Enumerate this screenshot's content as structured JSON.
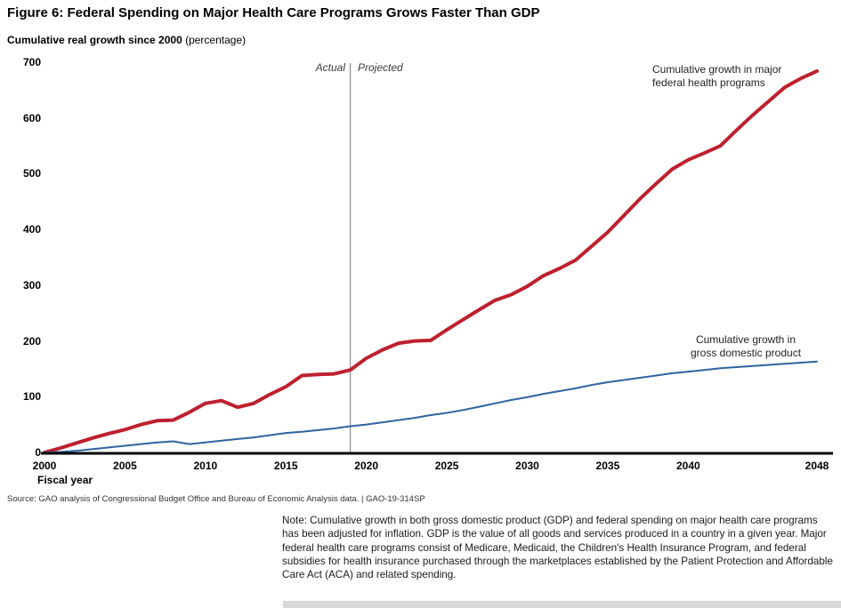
{
  "figure": {
    "title": "Figure 6: Federal Spending on Major Health Care Programs Grows Faster Than GDP",
    "y_axis_title_bold": "Cumulative real growth since 2000",
    "y_axis_title_unit": " (percentage)",
    "x_axis_title": "Fiscal year",
    "actual_label": "Actual",
    "projected_label": "Projected",
    "source": "Source: GAO analysis of Congressional Budget Office and Bureau of Economic Analysis data. | GAO-19-314SP",
    "note": "Note: Cumulative growth in both gross domestic product (GDP) and federal spending on major health care programs has been adjusted for inflation. GDP is the value of all goods and services produced in a country in a given year. Major federal health care programs consist of Medicare, Medicaid, the Children's Health Insurance Program, and federal subsidies for health insurance purchased through the marketplaces established by the Patient Protection and Affordable Care Act (ACA) and related spending."
  },
  "colors": {
    "health_line": "#be202e",
    "gdp_line": "#2e64a0",
    "axis": "#000000",
    "divider": "#8a8a8a"
  },
  "chart_data": {
    "type": "line",
    "title": "Figure 6: Federal Spending on Major Health Care Programs Grows Faster Than GDP",
    "ylabel": "Cumulative real growth since 2000 (percentage)",
    "xlabel": "Fiscal year",
    "xlim": [
      2000,
      2048
    ],
    "ylim": [
      0,
      700
    ],
    "y_ticks": [
      700,
      600,
      500,
      400,
      300,
      200,
      100,
      0
    ],
    "x_ticks": [
      2000,
      2005,
      2010,
      2015,
      2020,
      2025,
      2030,
      2035,
      2040,
      2048
    ],
    "grid": false,
    "legend": "inline-annotations",
    "actual_projected_divider_year": 2019,
    "x": [
      2000,
      2001,
      2002,
      2003,
      2004,
      2005,
      2006,
      2007,
      2008,
      2009,
      2010,
      2011,
      2012,
      2013,
      2014,
      2015,
      2016,
      2017,
      2018,
      2019,
      2020,
      2021,
      2022,
      2023,
      2024,
      2025,
      2026,
      2027,
      2028,
      2029,
      2030,
      2031,
      2032,
      2033,
      2034,
      2035,
      2036,
      2037,
      2038,
      2039,
      2040,
      2041,
      2042,
      2043,
      2044,
      2045,
      2046,
      2047,
      2048
    ],
    "series": [
      {
        "name": "Cumulative growth in major federal health programs",
        "label": "Cumulative growth in major\nfederal health programs",
        "color": "#be202e",
        "stroke_width": 4,
        "values": [
          0,
          8,
          17,
          26,
          34,
          41,
          50,
          57,
          58,
          72,
          88,
          93,
          81,
          88,
          104,
          118,
          138,
          140,
          141,
          148,
          169,
          184,
          196,
          200,
          201,
          220,
          238,
          256,
          273,
          283,
          298,
          317,
          330,
          345,
          370,
          395,
          425,
          455,
          482,
          508,
          525,
          537,
          550,
          578,
          605,
          630,
          655,
          671,
          684
        ]
      },
      {
        "name": "Cumulative growth in gross domestic product",
        "label": "Cumulative growth in\ngross domestic product",
        "color": "#2e64a0",
        "stroke_width": 2,
        "values": [
          0,
          1,
          3,
          6,
          9,
          12,
          15,
          18,
          20,
          15,
          18,
          21,
          24,
          27,
          31,
          35,
          37,
          40,
          43,
          47,
          50,
          54,
          58,
          62,
          67,
          71,
          76,
          82,
          88,
          94,
          99,
          105,
          110,
          115,
          121,
          126,
          130,
          134,
          138,
          142,
          145,
          148,
          151,
          153,
          155,
          157,
          159,
          161,
          163
        ]
      }
    ]
  }
}
